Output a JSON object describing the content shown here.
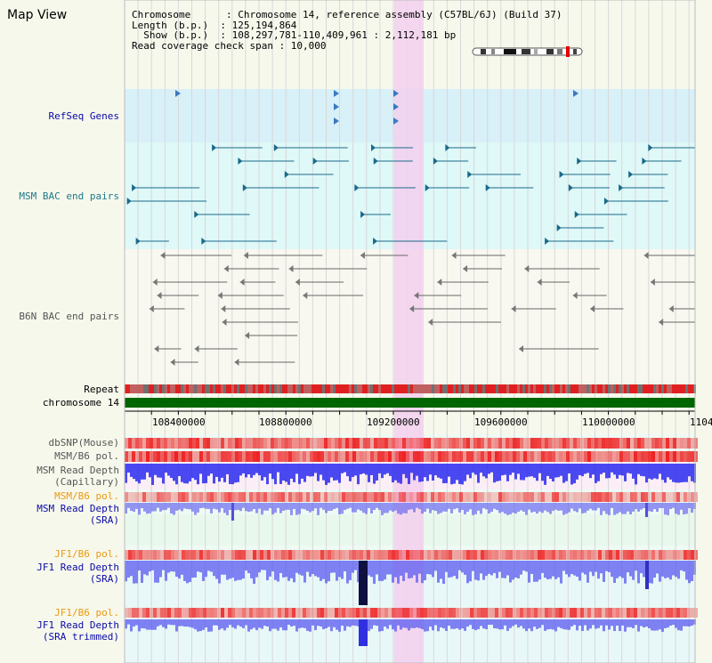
{
  "app": {
    "title": "Map View"
  },
  "info": {
    "line1": "Chromosome      : Chromosome 14, reference assembly (C57BL/6J) (Build 37)",
    "line2": "Length (b.p.)  : 125,194,864",
    "line3": "  Show (b.p.)  : 108,297,781-110,409,961 : 2,112,181 bp",
    "line4": "Read coverage check span : 10,000"
  },
  "tracks": {
    "refseq": "RefSeq Genes",
    "msm_bac": "MSM BAC end pairs",
    "b6n_bac": "B6N BAC end pairs",
    "repeat": "Repeat",
    "chromosome": "chromosome 14",
    "dbsnp": "dbSNP(Mouse)",
    "msm_b6_pol": "MSM/B6 pol.",
    "msm_read_depth_cap_1": "MSM Read Depth",
    "msm_read_depth_cap_2": "(Capillary)",
    "msm_b6_pol_2": "MSM/B6 pol.",
    "msm_read_depth_sra_1": "MSM Read Depth",
    "msm_read_depth_sra_2": "(SRA)",
    "jf1_b6_pol": "JF1/B6 pol.",
    "jf1_read_depth_sra_1": "JF1 Read Depth",
    "jf1_read_depth_sra_2": "(SRA)",
    "jf1_b6_pol_2": "JF1/B6 pol.",
    "jf1_read_depth_trim_1": "JF1 Read Depth",
    "jf1_read_depth_trim_2": "(SRA trimmed)"
  },
  "axis": {
    "ticks": [
      "108400000",
      "108800000",
      "109200000",
      "109600000",
      "110000000",
      "1104"
    ]
  },
  "colors": {
    "highlight": "#f3d0ee",
    "refseq_bg": "#d8f0f8",
    "msm_bg": "#dff8f8",
    "read_depth_blue": "#2a2af0",
    "pol_red": "#f04040",
    "orange_label": "#e89a10",
    "blue_label": "#0a0aa8",
    "teal_label": "#1a7a8a",
    "chrom_green": "#006600"
  }
}
